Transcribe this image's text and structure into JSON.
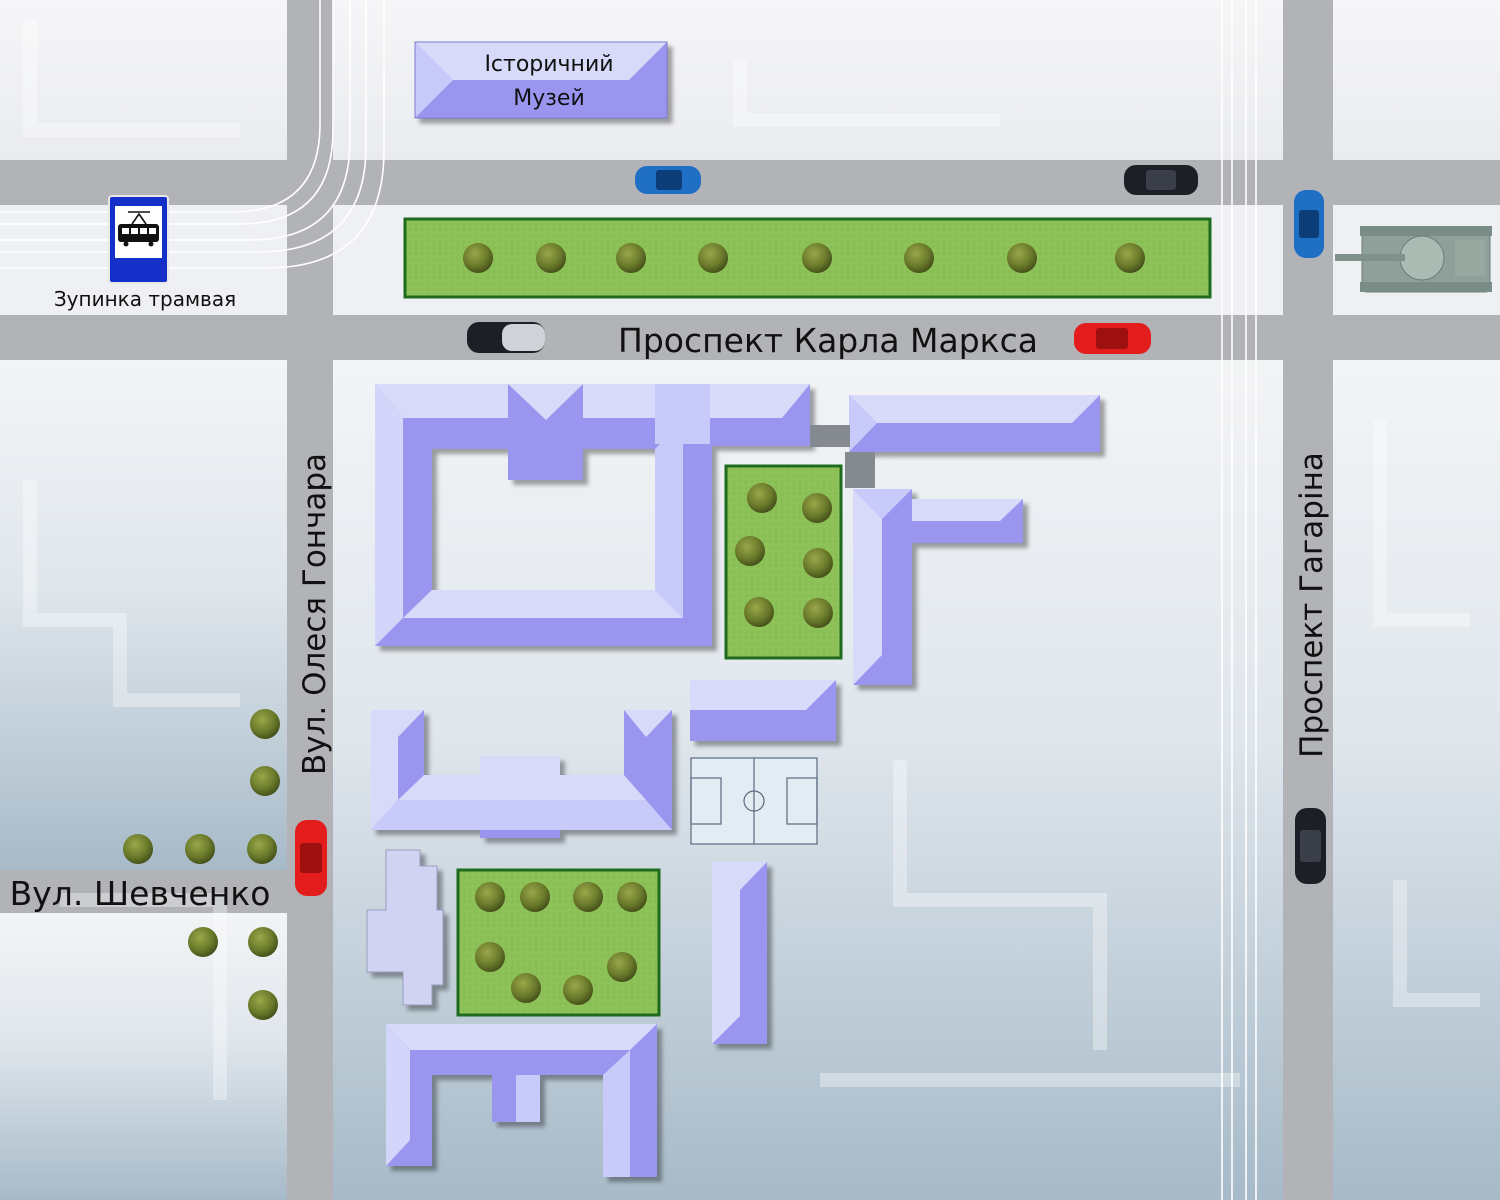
{
  "map": {
    "museum_label_line1": "Історичний",
    "museum_label_line2": "Музей",
    "tram_stop_label": "Зупинка трамвая",
    "streets": {
      "karla_marksa": "Проспект Карла Маркса",
      "honchara": "Вул. Олеся Гончара",
      "shevchenko": "Вул. Шевченко",
      "haharina": "Проспект Гагаріна"
    },
    "icons": [
      "tram-stop-sign-icon",
      "tree-icon",
      "car-icon",
      "tank-monument-icon",
      "football-field-icon"
    ],
    "colors": {
      "road": "#a9abaf",
      "block": "#e6e9ee",
      "building_light": "#d8dafa",
      "building_dark": "#9a96f0",
      "park": "#8cc157",
      "park_border": "#1e6b1e",
      "tree": "#6f7d2c",
      "tram_sign_blue": "#1430c8",
      "car_red": "#e31c1c",
      "car_blue": "#1f6fc4",
      "car_black": "#1c1f26"
    }
  }
}
